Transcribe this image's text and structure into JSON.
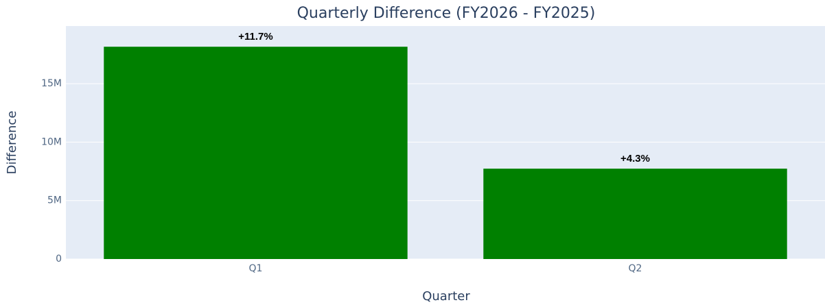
{
  "chart_data": {
    "type": "bar",
    "title": "Quarterly Difference (FY2026 - FY2025)",
    "x_label": "Quarter",
    "y_label": "Difference",
    "categories": [
      "Q1",
      "Q2"
    ],
    "values": [
      18160000,
      7730000
    ],
    "annotations": [
      "+11.7%",
      "+4.3%"
    ],
    "color": "#008000",
    "ylim": [
      0,
      19930000
    ],
    "yticks": [
      0,
      {
        "value": 5000000,
        "label": "5M"
      },
      {
        "value": 10000000,
        "label": "10M"
      },
      {
        "value": 15000000,
        "label": "15M"
      }
    ],
    "grid": true
  }
}
